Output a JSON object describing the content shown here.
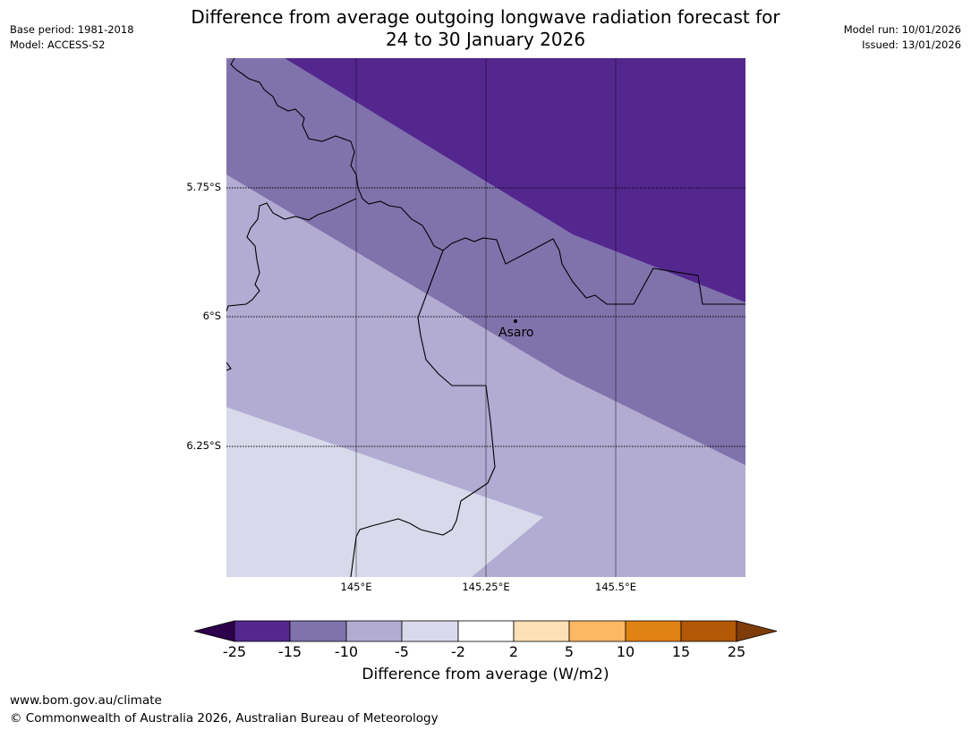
{
  "header": {
    "title_line1": "Difference from average outgoing longwave radiation forecast for",
    "title_line2": "24 to 30 January 2026",
    "base_period": "Base period: 1981-2018",
    "model": "Model: ACCESS-S2",
    "model_run": "Model run: 10/01/2026",
    "issued": "Issued: 13/01/2026"
  },
  "map": {
    "lat_labels": [
      "5.75°S",
      "6°S",
      "6.25°S"
    ],
    "lon_labels": [
      "145°E",
      "145.25°E",
      "145.5°E"
    ],
    "place": "Asaro",
    "region_colors": {
      "minus15_to_minus25": "#54278f",
      "minus10_to_minus15": "#8073ac",
      "minus5_to_minus10": "#b2abd2",
      "minus2_to_minus5": "#d8daeb"
    }
  },
  "colorbar": {
    "ticks": [
      "-25",
      "-15",
      "-10",
      "-5",
      "-2",
      "2",
      "5",
      "10",
      "15",
      "25"
    ],
    "colors": [
      "#2d004b",
      "#54278f",
      "#8073ac",
      "#b2abd2",
      "#d8daeb",
      "#ffffff",
      "#fee0b6",
      "#fdb863",
      "#e08214",
      "#b35806",
      "#7f3b08"
    ],
    "label": "Difference from average (W/m2)"
  },
  "footer": {
    "url": "www.bom.gov.au/climate",
    "copyright": "© Commonwealth of Australia 2026, Australian Bureau of Meteorology"
  }
}
